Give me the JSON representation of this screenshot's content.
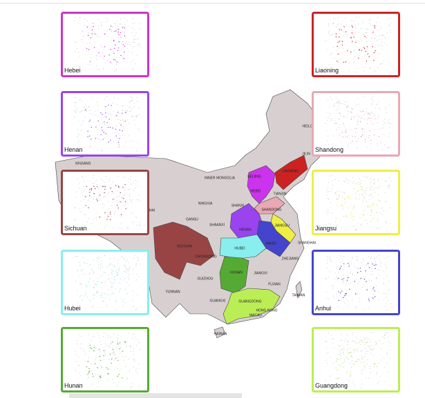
{
  "panels": [
    {
      "label": "Hebei",
      "color": "#cc33cc"
    },
    {
      "label": "Liaoning",
      "color": "#cc2222"
    },
    {
      "label": "Henan",
      "color": "#9944ee"
    },
    {
      "label": "Shandong",
      "color": "#e8a8b4"
    },
    {
      "label": "Sichuan",
      "color": "#994444"
    },
    {
      "label": "Jiangsu",
      "color": "#eeee44"
    },
    {
      "label": "Hubei",
      "color": "#88eeee"
    },
    {
      "label": "Anhui",
      "color": "#4444cc"
    },
    {
      "label": "Hunan",
      "color": "#55aa33"
    },
    {
      "label": "Guangdong",
      "color": "#bbee55"
    }
  ],
  "map": {
    "labels": [
      "XINJIANG",
      "INNER MONGOLIA",
      "HEILO",
      "JILIN",
      "LIAONING",
      "BEIJING",
      "HEBEI",
      "TIANJIN",
      "SHANXI",
      "SHANDONG",
      "NINGXIA",
      "GANSU",
      "HAI",
      "SHAANXI",
      "HENAN",
      "JIANGSU",
      "ANHUI",
      "SHANGHAI",
      "SICHUAN",
      "HUBEI",
      "ZHEJIANG",
      "CHONGQING",
      "GUIZHOU",
      "HUNAN",
      "JIANGXI",
      "FUJIAN",
      "YUNNAN",
      "GUANGXI",
      "GUANGDONG",
      "TAIWAN",
      "HONG KONG",
      "MACAU",
      "HAINAN"
    ]
  }
}
